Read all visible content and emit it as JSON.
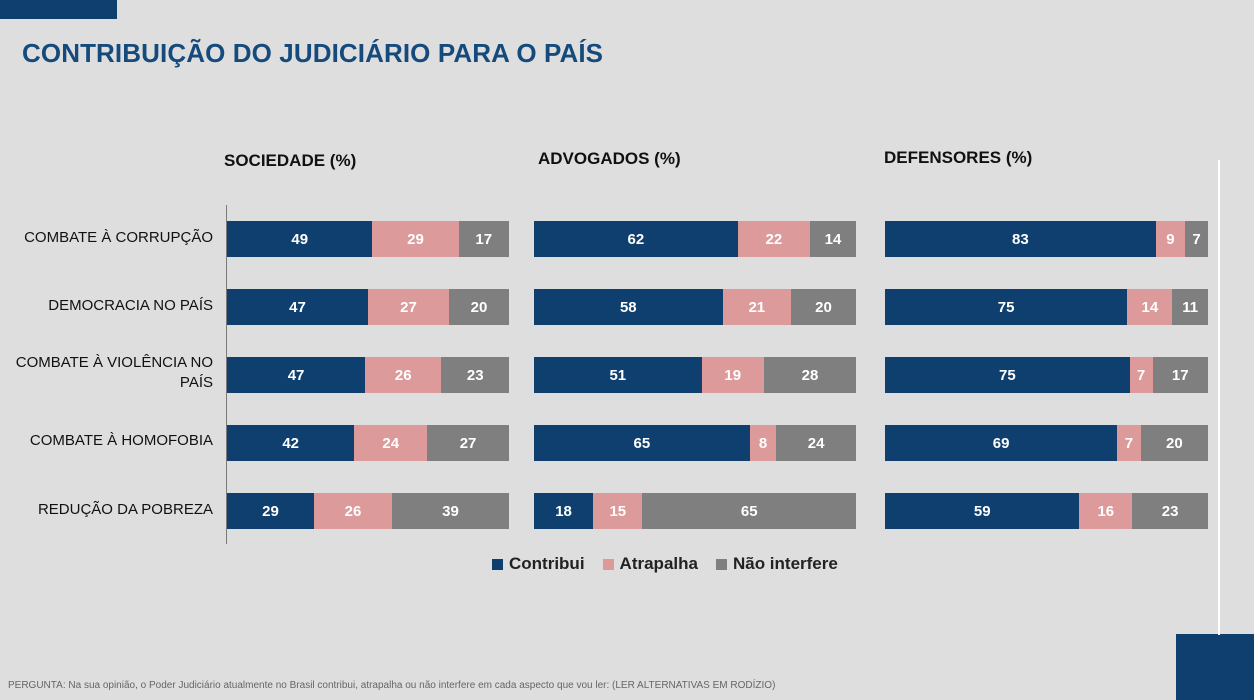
{
  "title": "CONTRIBUIÇÃO DO JUDICIÁRIO PARA O PAÍS",
  "footnote": "PERGUNTA: Na sua opinião, o Poder Judiciário atualmente no Brasil contribui, atrapalha ou não interfere em cada aspecto que vou ler: (LER ALTERNATIVAS EM RODÍZIO)",
  "colors": {
    "contribui": "#0e3f6e",
    "atrapalha": "#dc9a9a",
    "nao_interfere": "#7f7f7f"
  },
  "legend": [
    {
      "label": "Contribui",
      "color": "#0e3f6e"
    },
    {
      "label": "Atrapalha",
      "color": "#dc9a9a"
    },
    {
      "label": "Não interfere",
      "color": "#7f7f7f"
    }
  ],
  "chart_data": [
    {
      "type": "bar",
      "stacked": true,
      "orientation": "horizontal",
      "title": "SOCIEDADE  (%)",
      "categories": [
        "COMBATE À CORRUPÇÃO",
        "DEMOCRACIA NO PAÍS",
        "COMBATE À VIOLÊNCIA NO PAÍS",
        "COMBATE À HOMOFOBIA",
        "REDUÇÃO DA POBREZA"
      ],
      "series": [
        {
          "name": "Contribui",
          "values": [
            49,
            47,
            47,
            42,
            29
          ]
        },
        {
          "name": "Atrapalha",
          "values": [
            29,
            27,
            26,
            24,
            26
          ]
        },
        {
          "name": "Não interfere",
          "values": [
            17,
            20,
            23,
            27,
            39
          ]
        }
      ]
    },
    {
      "type": "bar",
      "stacked": true,
      "orientation": "horizontal",
      "title": "ADVOGADOS  (%)",
      "categories": [
        "COMBATE À CORRUPÇÃO",
        "DEMOCRACIA NO PAÍS",
        "COMBATE À VIOLÊNCIA NO PAÍS",
        "COMBATE À HOMOFOBIA",
        "REDUÇÃO DA POBREZA"
      ],
      "series": [
        {
          "name": "Contribui",
          "values": [
            62,
            58,
            51,
            65,
            18
          ]
        },
        {
          "name": "Atrapalha",
          "values": [
            22,
            21,
            19,
            8,
            15
          ]
        },
        {
          "name": "Não interfere",
          "values": [
            14,
            20,
            28,
            24,
            65
          ]
        }
      ]
    },
    {
      "type": "bar",
      "stacked": true,
      "orientation": "horizontal",
      "title": "DEFENSORES  (%)",
      "categories": [
        "COMBATE À CORRUPÇÃO",
        "DEMOCRACIA NO PAÍS",
        "COMBATE À VIOLÊNCIA NO PAÍS",
        "COMBATE À HOMOFOBIA",
        "REDUÇÃO DA POBREZA"
      ],
      "series": [
        {
          "name": "Contribui",
          "values": [
            83,
            75,
            75,
            69,
            59
          ]
        },
        {
          "name": "Atrapalha",
          "values": [
            9,
            14,
            7,
            7,
            16
          ]
        },
        {
          "name": "Não interfere",
          "values": [
            7,
            11,
            17,
            20,
            23
          ]
        }
      ]
    }
  ]
}
